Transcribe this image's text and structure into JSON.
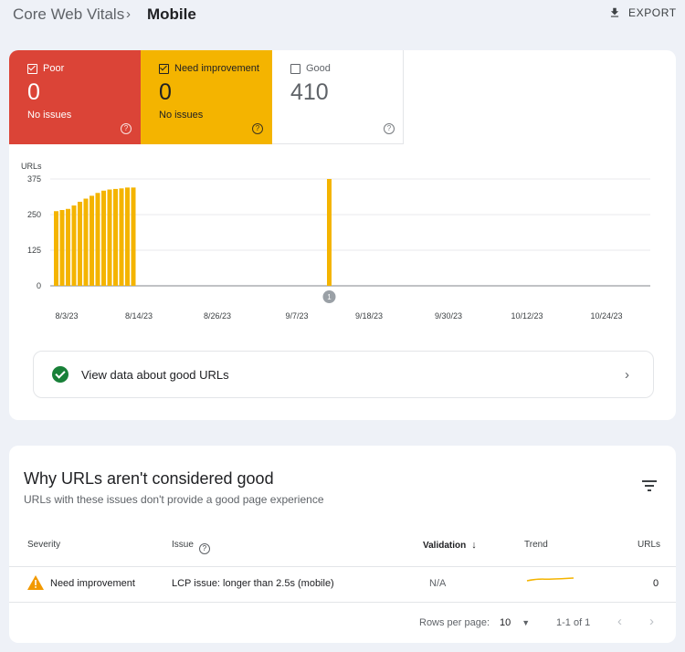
{
  "breadcrumb": {
    "root": "Core Web Vitals",
    "separator": "›",
    "current": "Mobile"
  },
  "toolbar": {
    "export_label": "EXPORT",
    "export_icon": "download-icon"
  },
  "tiles": {
    "poor": {
      "label": "Poor",
      "value": "0",
      "sub": "No issues",
      "checked": true,
      "color": "#db4437"
    },
    "need_improvement": {
      "label": "Need improvement",
      "value": "0",
      "sub": "No issues",
      "checked": true,
      "color": "#f4b400"
    },
    "good": {
      "label": "Good",
      "value": "410",
      "checked": false
    }
  },
  "chart_data": {
    "type": "bar",
    "ylabel": "URLs",
    "ylim": [
      0,
      375
    ],
    "y_ticks": [
      "0",
      "125",
      "250",
      "375"
    ],
    "x_tick_labels": [
      "8/3/23",
      "8/14/23",
      "8/26/23",
      "9/7/23",
      "9/18/23",
      "9/30/23",
      "10/12/23",
      "10/24/23"
    ],
    "series": [
      {
        "color": "#f4b400",
        "values": [
          262,
          266,
          270,
          282,
          295,
          306,
          316,
          326,
          334,
          338,
          340,
          342,
          345,
          345,
          0,
          0,
          0,
          0,
          0,
          0,
          0,
          0,
          0,
          0,
          0,
          0,
          0,
          0,
          0,
          0,
          0,
          0,
          0,
          0,
          0,
          0,
          0,
          0,
          0,
          0,
          0,
          0,
          0,
          0,
          0,
          0,
          375
        ]
      }
    ],
    "annotations": [
      {
        "label": "1",
        "at": "9/18/23"
      }
    ],
    "grid": true
  },
  "good_urls_link": {
    "label": "View data about good URLs"
  },
  "why": {
    "title": "Why URLs aren't considered good",
    "subtitle": "URLs with these issues don't provide a good page experience",
    "columns": {
      "severity": "Severity",
      "issue": "Issue",
      "validation": "Validation",
      "trend": "Trend",
      "urls": "URLs"
    },
    "rows": [
      {
        "severity": "Need improvement",
        "issue": "LCP issue: longer than 2.5s (mobile)",
        "validation": "N/A",
        "urls": "0"
      }
    ],
    "pager": {
      "rows_per_page_label": "Rows per page:",
      "rows_per_page": "10",
      "range": "1-1 of 1"
    }
  }
}
